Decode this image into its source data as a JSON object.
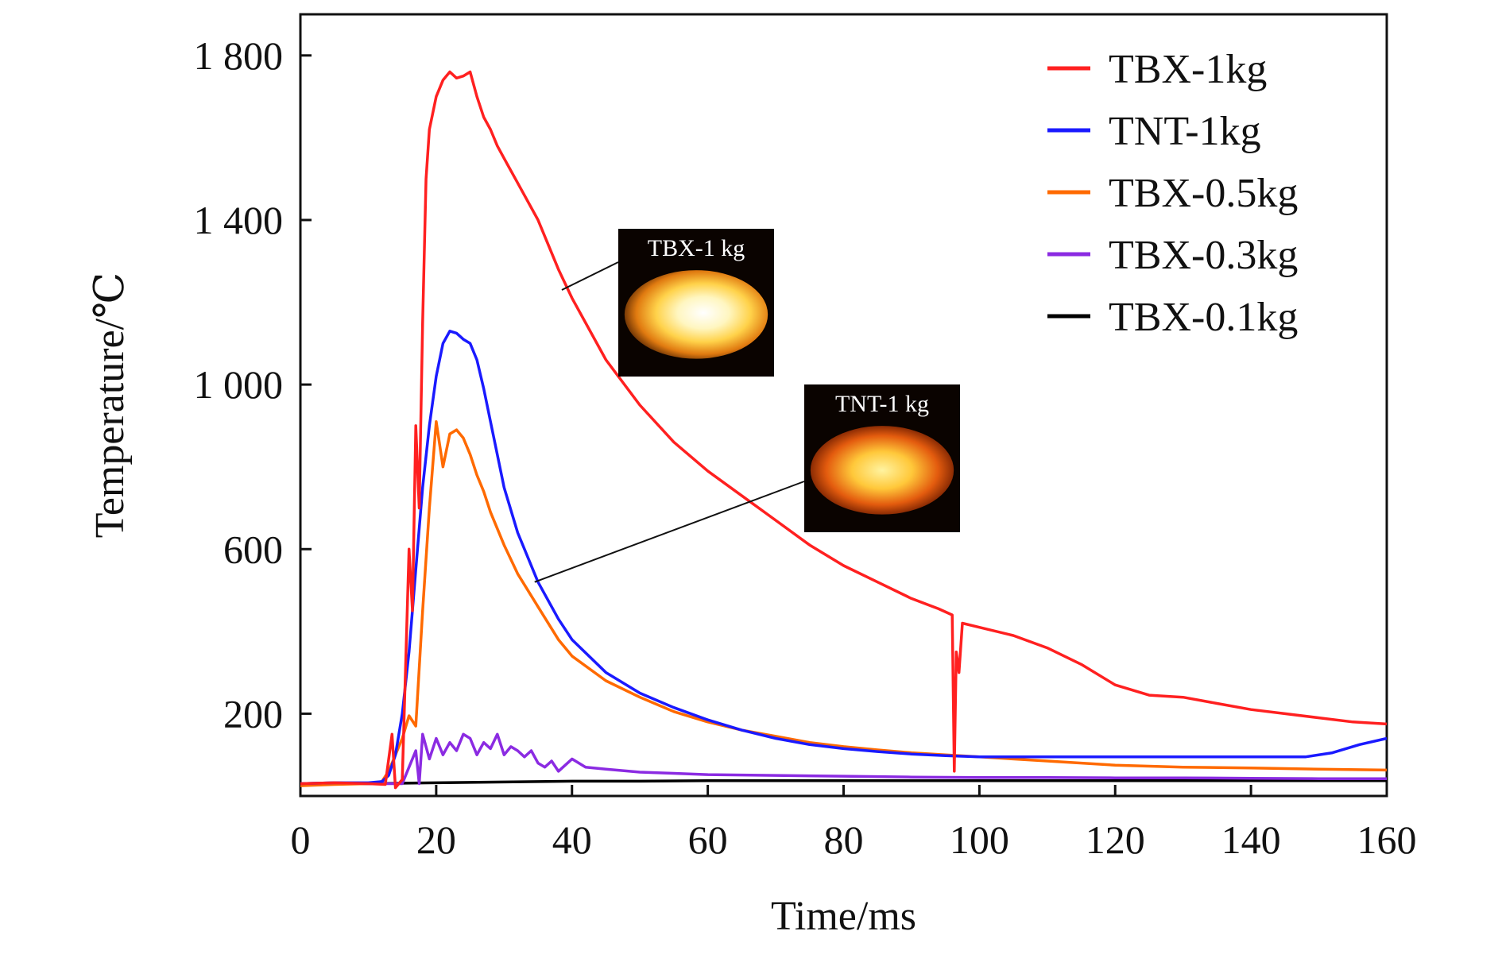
{
  "chart_data": {
    "type": "line",
    "xlabel": "Time/ms",
    "ylabel": "Temperature/℃",
    "xlim": [
      0,
      160
    ],
    "ylim": [
      0,
      1900
    ],
    "xticks": [
      0,
      20,
      40,
      60,
      80,
      100,
      120,
      140,
      160
    ],
    "yticks": [
      200,
      600,
      1000,
      1400,
      1800
    ],
    "ytick_labels": [
      "200",
      "600",
      "1 000",
      "1 400",
      "1 800"
    ],
    "grid": false,
    "legend_position": "top-right",
    "series": [
      {
        "name": "TBX-1kg",
        "color": "#ff2020",
        "points": [
          [
            0,
            30
          ],
          [
            5,
            32
          ],
          [
            10,
            30
          ],
          [
            12.5,
            28
          ],
          [
            13.5,
            150
          ],
          [
            14,
            20
          ],
          [
            15,
            40
          ],
          [
            16,
            600
          ],
          [
            16.5,
            450
          ],
          [
            17,
            900
          ],
          [
            17.5,
            700
          ],
          [
            18,
            1150
          ],
          [
            18.5,
            1500
          ],
          [
            19,
            1620
          ],
          [
            20,
            1700
          ],
          [
            21,
            1740
          ],
          [
            22,
            1760
          ],
          [
            23,
            1745
          ],
          [
            24,
            1750
          ],
          [
            25,
            1760
          ],
          [
            26,
            1700
          ],
          [
            27,
            1650
          ],
          [
            28,
            1620
          ],
          [
            29,
            1580
          ],
          [
            30,
            1550
          ],
          [
            32,
            1490
          ],
          [
            35,
            1400
          ],
          [
            38,
            1280
          ],
          [
            40,
            1210
          ],
          [
            45,
            1060
          ],
          [
            50,
            950
          ],
          [
            55,
            860
          ],
          [
            60,
            790
          ],
          [
            65,
            730
          ],
          [
            70,
            670
          ],
          [
            75,
            610
          ],
          [
            80,
            560
          ],
          [
            85,
            520
          ],
          [
            90,
            480
          ],
          [
            94,
            455
          ],
          [
            96,
            440
          ],
          [
            96.3,
            60
          ],
          [
            96.6,
            350
          ],
          [
            97,
            300
          ],
          [
            97.5,
            420
          ],
          [
            100,
            410
          ],
          [
            105,
            390
          ],
          [
            110,
            360
          ],
          [
            115,
            320
          ],
          [
            120,
            270
          ],
          [
            125,
            245
          ],
          [
            130,
            240
          ],
          [
            135,
            225
          ],
          [
            140,
            210
          ],
          [
            145,
            200
          ],
          [
            150,
            190
          ],
          [
            155,
            180
          ],
          [
            160,
            175
          ]
        ]
      },
      {
        "name": "TNT-1kg",
        "color": "#1a1aff",
        "points": [
          [
            0,
            30
          ],
          [
            5,
            32
          ],
          [
            10,
            32
          ],
          [
            12,
            35
          ],
          [
            13,
            50
          ],
          [
            14,
            100
          ],
          [
            15,
            200
          ],
          [
            16,
            350
          ],
          [
            17,
            550
          ],
          [
            18,
            750
          ],
          [
            19,
            900
          ],
          [
            20,
            1020
          ],
          [
            21,
            1100
          ],
          [
            22,
            1130
          ],
          [
            23,
            1125
          ],
          [
            24,
            1110
          ],
          [
            25,
            1100
          ],
          [
            26,
            1060
          ],
          [
            27,
            990
          ],
          [
            28,
            910
          ],
          [
            30,
            750
          ],
          [
            32,
            640
          ],
          [
            35,
            520
          ],
          [
            38,
            430
          ],
          [
            40,
            380
          ],
          [
            45,
            300
          ],
          [
            50,
            250
          ],
          [
            55,
            215
          ],
          [
            60,
            185
          ],
          [
            65,
            160
          ],
          [
            70,
            140
          ],
          [
            75,
            125
          ],
          [
            80,
            115
          ],
          [
            85,
            108
          ],
          [
            90,
            102
          ],
          [
            95,
            98
          ],
          [
            100,
            95
          ],
          [
            110,
            95
          ],
          [
            120,
            95
          ],
          [
            130,
            95
          ],
          [
            140,
            95
          ],
          [
            148,
            95
          ],
          [
            152,
            105
          ],
          [
            156,
            125
          ],
          [
            160,
            140
          ]
        ]
      },
      {
        "name": "TBX-0.5kg",
        "color": "#ff6a00",
        "points": [
          [
            0,
            25
          ],
          [
            5,
            28
          ],
          [
            10,
            30
          ],
          [
            12,
            35
          ],
          [
            13,
            60
          ],
          [
            14,
            100
          ],
          [
            15,
            140
          ],
          [
            16,
            195
          ],
          [
            17,
            170
          ],
          [
            18,
            450
          ],
          [
            19,
            700
          ],
          [
            20,
            910
          ],
          [
            21,
            800
          ],
          [
            22,
            880
          ],
          [
            23,
            890
          ],
          [
            24,
            870
          ],
          [
            25,
            830
          ],
          [
            26,
            780
          ],
          [
            27,
            740
          ],
          [
            28,
            690
          ],
          [
            30,
            610
          ],
          [
            32,
            540
          ],
          [
            35,
            460
          ],
          [
            38,
            380
          ],
          [
            40,
            340
          ],
          [
            45,
            280
          ],
          [
            50,
            240
          ],
          [
            55,
            205
          ],
          [
            60,
            180
          ],
          [
            65,
            160
          ],
          [
            70,
            145
          ],
          [
            75,
            130
          ],
          [
            80,
            120
          ],
          [
            85,
            112
          ],
          [
            90,
            105
          ],
          [
            95,
            100
          ],
          [
            100,
            95
          ],
          [
            110,
            85
          ],
          [
            120,
            75
          ],
          [
            130,
            70
          ],
          [
            140,
            68
          ],
          [
            150,
            65
          ],
          [
            160,
            63
          ]
        ]
      },
      {
        "name": "TBX-0.3kg",
        "color": "#8b2be2",
        "points": [
          [
            0,
            30
          ],
          [
            5,
            32
          ],
          [
            10,
            30
          ],
          [
            15,
            30
          ],
          [
            16,
            70
          ],
          [
            17,
            110
          ],
          [
            17.5,
            30
          ],
          [
            18,
            150
          ],
          [
            19,
            90
          ],
          [
            20,
            140
          ],
          [
            21,
            100
          ],
          [
            22,
            130
          ],
          [
            23,
            110
          ],
          [
            24,
            150
          ],
          [
            25,
            140
          ],
          [
            26,
            100
          ],
          [
            27,
            130
          ],
          [
            28,
            115
          ],
          [
            29,
            150
          ],
          [
            30,
            100
          ],
          [
            31,
            120
          ],
          [
            32,
            110
          ],
          [
            33,
            95
          ],
          [
            34,
            110
          ],
          [
            35,
            80
          ],
          [
            36,
            70
          ],
          [
            37,
            85
          ],
          [
            38,
            60
          ],
          [
            40,
            90
          ],
          [
            42,
            70
          ],
          [
            45,
            65
          ],
          [
            50,
            58
          ],
          [
            55,
            55
          ],
          [
            60,
            52
          ],
          [
            70,
            50
          ],
          [
            80,
            48
          ],
          [
            90,
            46
          ],
          [
            100,
            45
          ],
          [
            110,
            45
          ],
          [
            120,
            44
          ],
          [
            130,
            44
          ],
          [
            140,
            43
          ],
          [
            150,
            42
          ],
          [
            160,
            42
          ]
        ]
      },
      {
        "name": "TBX-0.1kg",
        "color": "#000000",
        "points": [
          [
            0,
            30
          ],
          [
            10,
            30
          ],
          [
            20,
            32
          ],
          [
            30,
            34
          ],
          [
            40,
            36
          ],
          [
            50,
            36
          ],
          [
            60,
            37
          ],
          [
            70,
            37
          ],
          [
            80,
            37
          ],
          [
            90,
            37
          ],
          [
            100,
            37
          ],
          [
            110,
            37
          ],
          [
            120,
            37
          ],
          [
            130,
            37
          ],
          [
            140,
            37
          ],
          [
            150,
            37
          ],
          [
            160,
            37
          ]
        ]
      }
    ],
    "insets": [
      {
        "label": "TBX-1 kg",
        "points_to": "TBX-1kg"
      },
      {
        "label": "TNT-1 kg",
        "points_to": "TNT-1kg"
      }
    ]
  }
}
